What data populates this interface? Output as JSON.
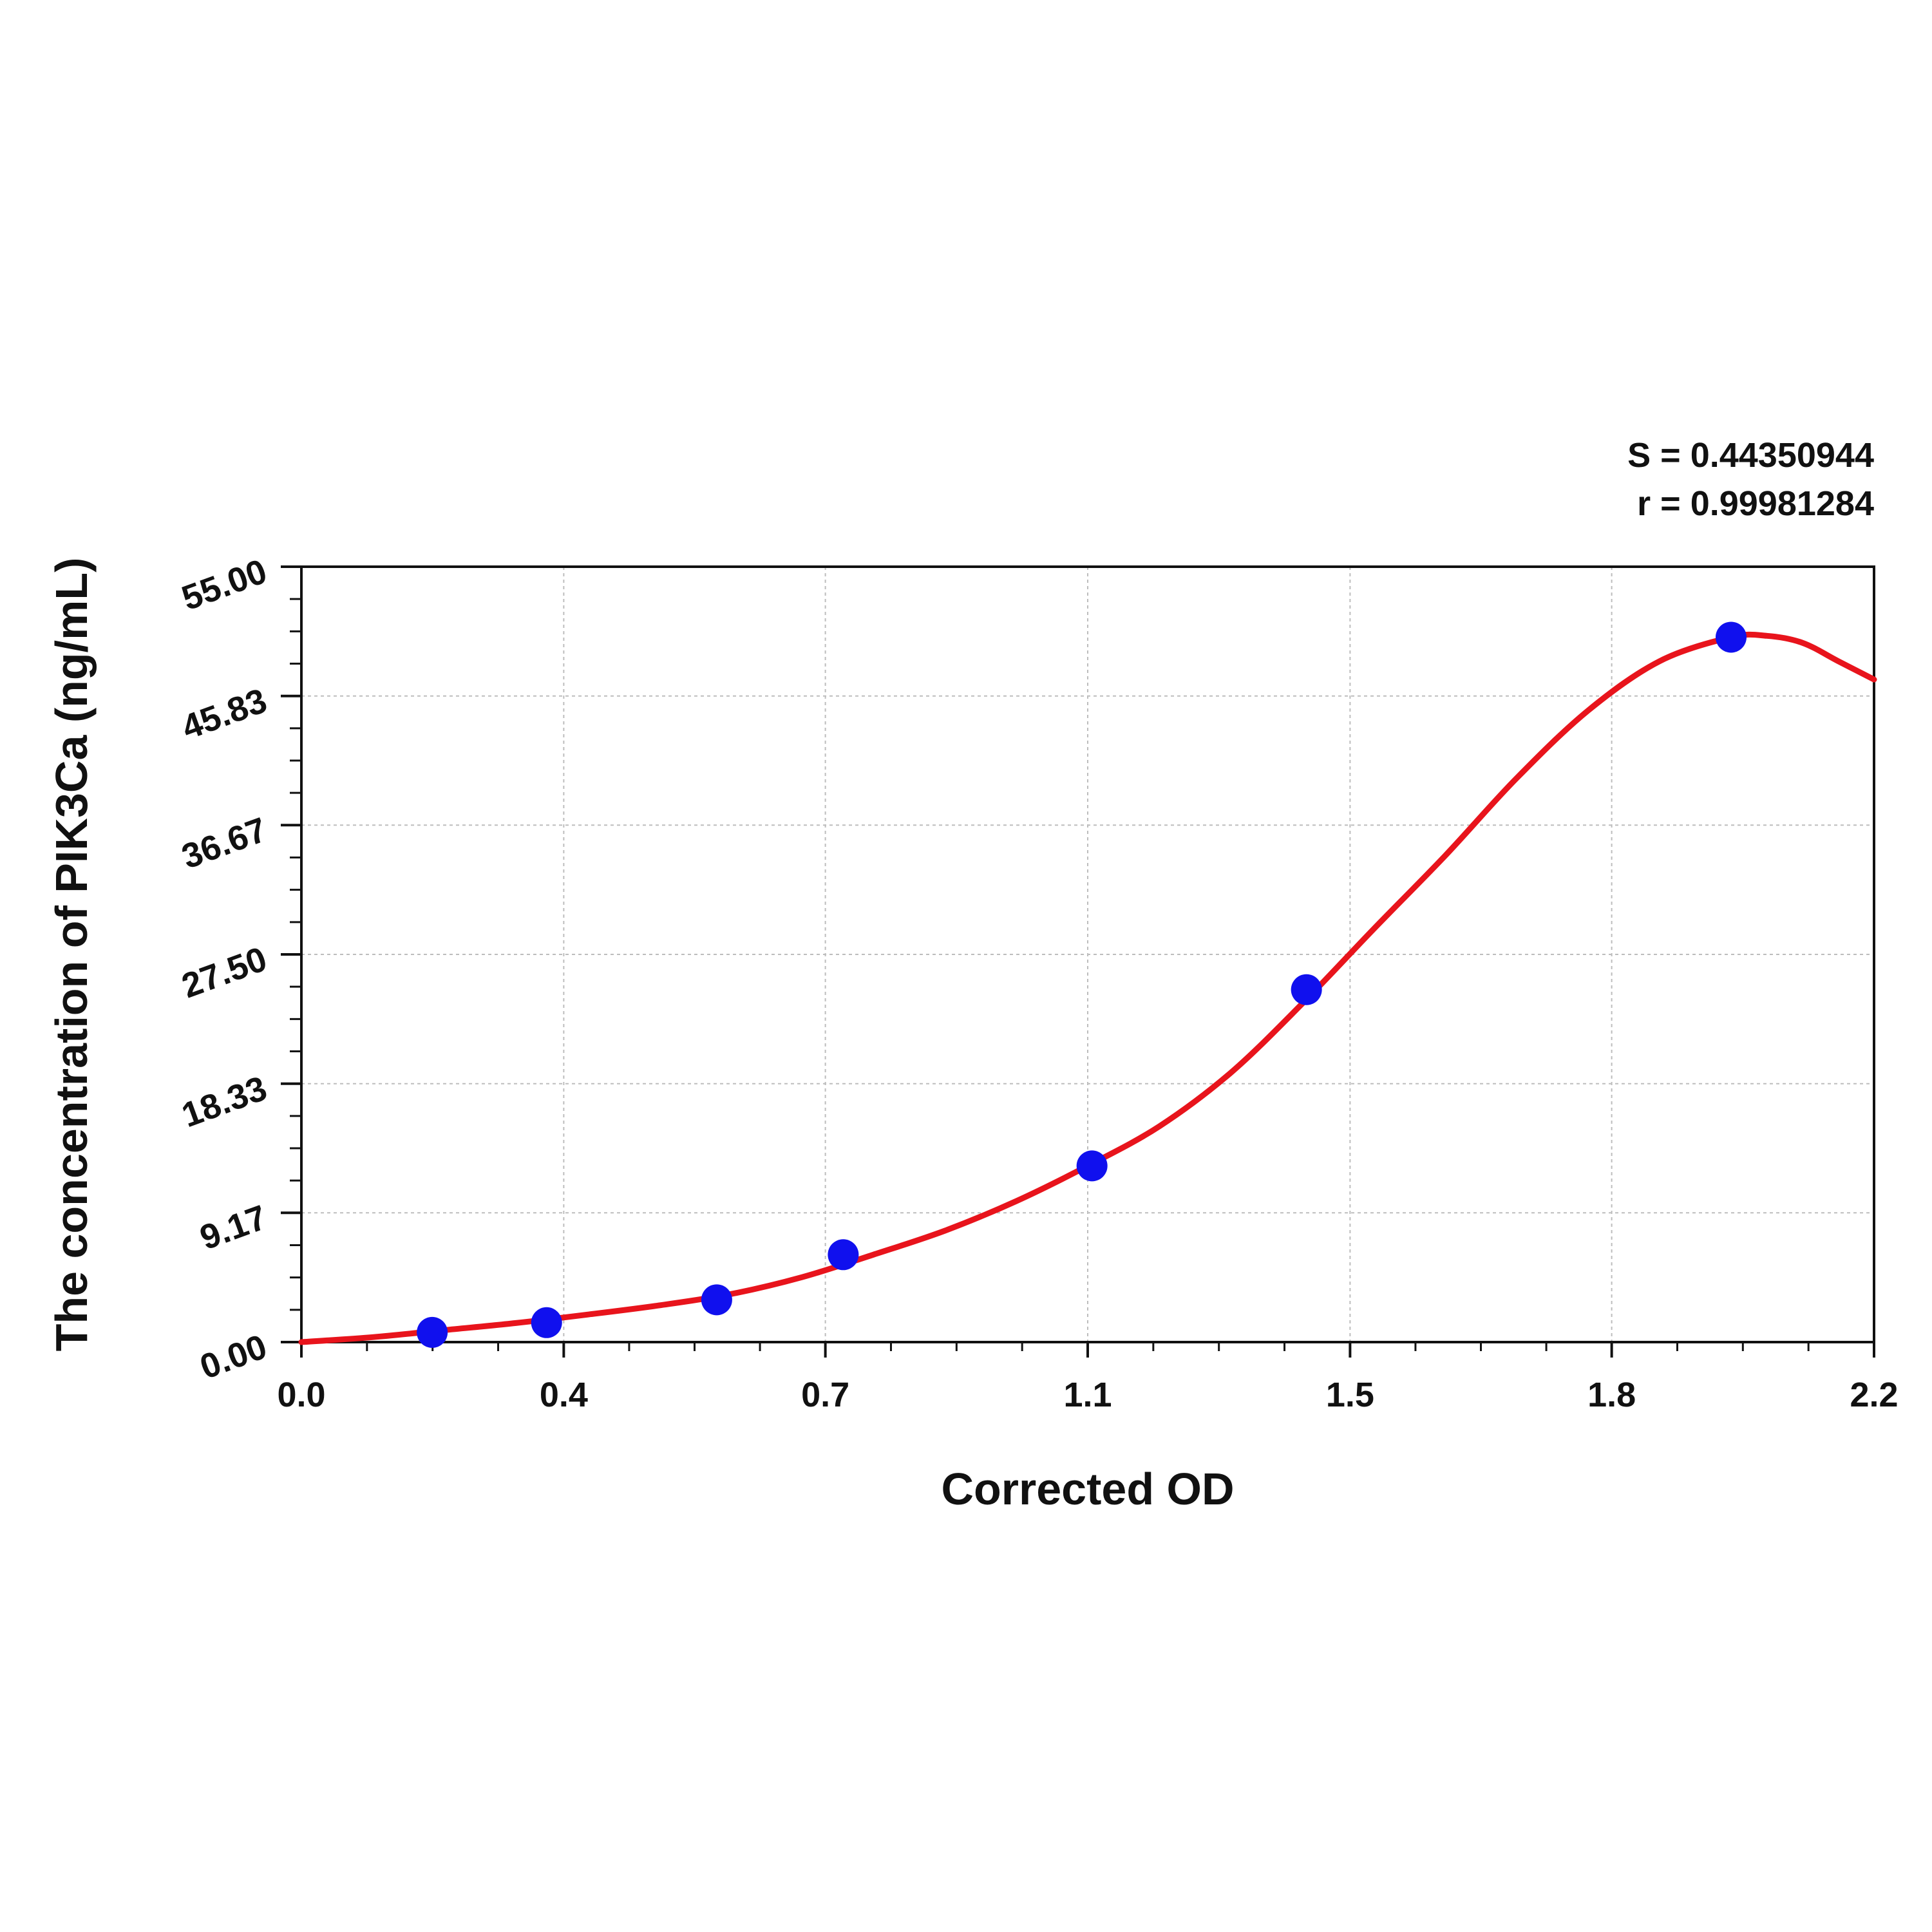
{
  "stats": {
    "s_line": "S = 0.44350944",
    "r_line": "r = 0.99981284"
  },
  "chart_data": {
    "type": "scatter",
    "title": "",
    "xlabel": "Corrected OD",
    "ylabel": "The concentration of PIK3Ca (ng/mL)",
    "xlim": [
      0.0,
      2.2
    ],
    "ylim": [
      0.0,
      55.0
    ],
    "x_ticks": [
      {
        "value": 0.0,
        "label": "0.0"
      },
      {
        "value": 0.367,
        "label": "0.4"
      },
      {
        "value": 0.733,
        "label": "0.7"
      },
      {
        "value": 1.1,
        "label": "1.1"
      },
      {
        "value": 1.467,
        "label": "1.5"
      },
      {
        "value": 1.833,
        "label": "1.8"
      },
      {
        "value": 2.2,
        "label": "2.2"
      }
    ],
    "y_ticks": [
      {
        "value": 0.0,
        "label": "0.00"
      },
      {
        "value": 9.17,
        "label": "9.17"
      },
      {
        "value": 18.33,
        "label": "18.33"
      },
      {
        "value": 27.5,
        "label": "27.50"
      },
      {
        "value": 36.67,
        "label": "36.67"
      },
      {
        "value": 45.83,
        "label": "45.83"
      },
      {
        "value": 55.0,
        "label": "55.00"
      }
    ],
    "grid": true,
    "series": [
      {
        "points": [
          {
            "x": 0.183,
            "y": 0.69
          },
          {
            "x": 0.343,
            "y": 1.38
          },
          {
            "x": 0.581,
            "y": 3.0
          },
          {
            "x": 0.758,
            "y": 6.2
          },
          {
            "x": 1.106,
            "y": 12.5
          },
          {
            "x": 1.406,
            "y": 25.0
          },
          {
            "x": 2.0,
            "y": 50.0
          }
        ],
        "color": "#1010ee"
      }
    ],
    "fit_curve": {
      "color": "#e8141c",
      "points": [
        {
          "x": 0.0,
          "y": 0.0
        },
        {
          "x": 0.1,
          "y": 0.35
        },
        {
          "x": 0.2,
          "y": 0.85
        },
        {
          "x": 0.3,
          "y": 1.35
        },
        {
          "x": 0.4,
          "y": 1.95
        },
        {
          "x": 0.5,
          "y": 2.6
        },
        {
          "x": 0.6,
          "y": 3.4
        },
        {
          "x": 0.7,
          "y": 4.6
        },
        {
          "x": 0.8,
          "y": 6.2
        },
        {
          "x": 0.9,
          "y": 7.9
        },
        {
          "x": 1.0,
          "y": 10.0
        },
        {
          "x": 1.1,
          "y": 12.5
        },
        {
          "x": 1.2,
          "y": 15.3
        },
        {
          "x": 1.3,
          "y": 19.1
        },
        {
          "x": 1.4,
          "y": 24.0
        },
        {
          "x": 1.5,
          "y": 29.3
        },
        {
          "x": 1.6,
          "y": 34.5
        },
        {
          "x": 1.7,
          "y": 40.0
        },
        {
          "x": 1.8,
          "y": 44.8
        },
        {
          "x": 1.9,
          "y": 48.3
        },
        {
          "x": 2.0,
          "y": 50.0
        },
        {
          "x": 2.05,
          "y": 50.1
        },
        {
          "x": 2.1,
          "y": 49.6
        },
        {
          "x": 2.15,
          "y": 48.3
        },
        {
          "x": 2.2,
          "y": 47.0
        }
      ]
    }
  }
}
